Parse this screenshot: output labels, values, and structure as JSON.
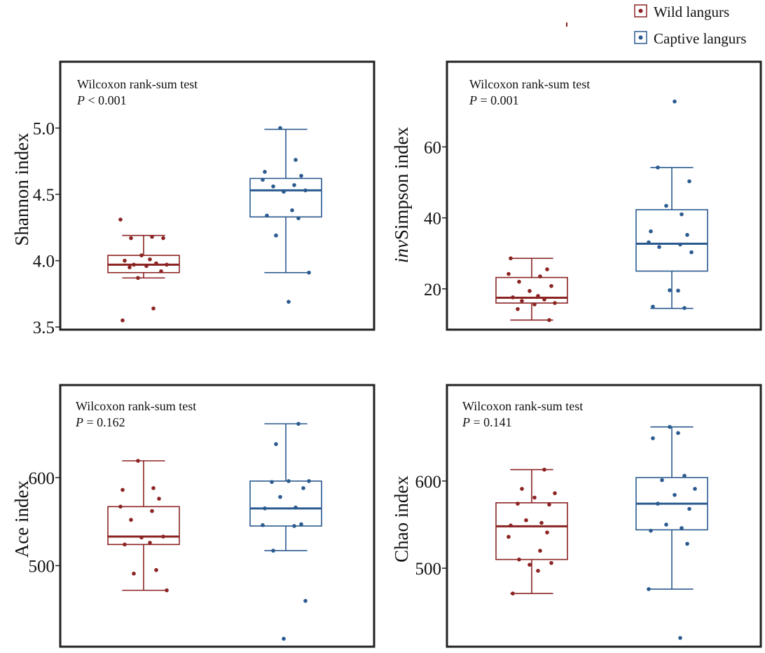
{
  "legend": {
    "items": [
      {
        "label": "Wild langurs",
        "color": "#8b2323"
      },
      {
        "label": "Captive langurs",
        "color": "#2a5a8f"
      }
    ]
  },
  "chart_data": [
    {
      "type": "box",
      "ylabel": "Shannon index",
      "ylabel_prefix_italic": "",
      "ylabel_rest": "Shannon index",
      "ylim": [
        3.48,
        5.5
      ],
      "yticks": [
        3.5,
        4.0,
        4.5,
        5.0
      ],
      "ytick_labels": [
        "3.5",
        "4.0",
        "4.5",
        "5.0"
      ],
      "annotation": {
        "test": "Wilcoxon rank-sum test",
        "p_symbol": "P",
        "p_rest": " < 0.001"
      },
      "groups": [
        {
          "name": "Wild langurs",
          "color": "#8b2323",
          "whisker_low": 3.87,
          "q1": 3.91,
          "median": 3.97,
          "q3": 4.04,
          "whisker_high": 4.19,
          "points": [
            3.55,
            3.64,
            3.87,
            3.92,
            3.95,
            3.96,
            3.97,
            3.97,
            3.98,
            4.0,
            4.01,
            4.04,
            4.17,
            4.17,
            4.18,
            4.31
          ]
        },
        {
          "name": "Captive langurs",
          "color": "#2a5a8f",
          "whisker_low": 3.91,
          "q1": 4.33,
          "median": 4.53,
          "q3": 4.62,
          "whisker_high": 4.99,
          "points": [
            3.69,
            3.91,
            4.19,
            4.32,
            4.34,
            4.38,
            4.52,
            4.53,
            4.56,
            4.57,
            4.61,
            4.64,
            4.67,
            4.76,
            5.0
          ]
        }
      ]
    },
    {
      "type": "box",
      "ylabel": "invSimpson index",
      "ylabel_prefix_italic": "inv",
      "ylabel_rest": "Simpson index",
      "ylim": [
        8.5,
        84
      ],
      "yticks": [
        20,
        40,
        60
      ],
      "ytick_labels": [
        "20",
        "40",
        "60"
      ],
      "annotation": {
        "test": "Wilcoxon rank-sum test",
        "p_symbol": "P",
        "p_rest": " = 0.001"
      },
      "groups": [
        {
          "name": "Wild langurs",
          "color": "#8b2323",
          "whisker_low": 11.2,
          "q1": 16.0,
          "median": 17.5,
          "q3": 23.2,
          "whisker_high": 28.6,
          "points": [
            11.2,
            14.3,
            15.6,
            16.0,
            16.6,
            17.0,
            17.6,
            18.0,
            19.4,
            20.8,
            22.0,
            23.5,
            24.2,
            25.5,
            28.6
          ]
        },
        {
          "name": "Captive langurs",
          "color": "#2a5a8f",
          "whisker_low": 14.5,
          "q1": 25.0,
          "median": 32.7,
          "q3": 42.3,
          "whisker_high": 54.2,
          "points": [
            14.6,
            15.0,
            19.5,
            19.6,
            30.3,
            31.8,
            32.5,
            33.1,
            35.2,
            36.2,
            41.0,
            43.4,
            50.3,
            54.2,
            72.8
          ]
        }
      ]
    },
    {
      "type": "box",
      "ylabel": "Ace index",
      "ylabel_prefix_italic": "",
      "ylabel_rest": "Ace index",
      "ylim": [
        408,
        705
      ],
      "yticks": [
        500,
        600
      ],
      "ytick_labels": [
        "500",
        "600"
      ],
      "annotation": {
        "test": "Wilcoxon rank-sum test",
        "p_symbol": "P",
        "p_rest": " = 0.162"
      },
      "groups": [
        {
          "name": "Wild langurs",
          "color": "#8b2323",
          "whisker_low": 472,
          "q1": 524,
          "median": 533,
          "q3": 567,
          "whisker_high": 619,
          "points": [
            472,
            491,
            495,
            524,
            526,
            532,
            533,
            552,
            562,
            567,
            576,
            586,
            588,
            619
          ]
        },
        {
          "name": "Captive langurs",
          "color": "#2a5a8f",
          "whisker_low": 517,
          "q1": 545,
          "median": 565,
          "q3": 596,
          "whisker_high": 661,
          "points": [
            417,
            460,
            517,
            545,
            546,
            547,
            565,
            566,
            578,
            588,
            595,
            596,
            596,
            638,
            661
          ]
        }
      ]
    },
    {
      "type": "box",
      "ylabel": "Chao index",
      "ylabel_prefix_italic": "",
      "ylabel_rest": "Chao index",
      "ylim": [
        410,
        710
      ],
      "yticks": [
        500,
        600
      ],
      "ytick_labels": [
        "500",
        "600"
      ],
      "annotation": {
        "test": "Wilcoxon rank-sum test",
        "p_symbol": "P",
        "p_rest": " = 0.141"
      },
      "groups": [
        {
          "name": "Wild langurs",
          "color": "#8b2323",
          "whisker_low": 471,
          "q1": 510,
          "median": 548,
          "q3": 575,
          "whisker_high": 613,
          "points": [
            471,
            497,
            504,
            506,
            510,
            520,
            536,
            541,
            549,
            552,
            555,
            573,
            574,
            581,
            586,
            591,
            613
          ]
        },
        {
          "name": "Captive langurs",
          "color": "#2a5a8f",
          "whisker_low": 476,
          "q1": 544,
          "median": 574,
          "q3": 604,
          "whisker_high": 662,
          "points": [
            420,
            476,
            528,
            543,
            546,
            550,
            568,
            574,
            584,
            591,
            601,
            606,
            649,
            655,
            662
          ]
        }
      ]
    }
  ]
}
